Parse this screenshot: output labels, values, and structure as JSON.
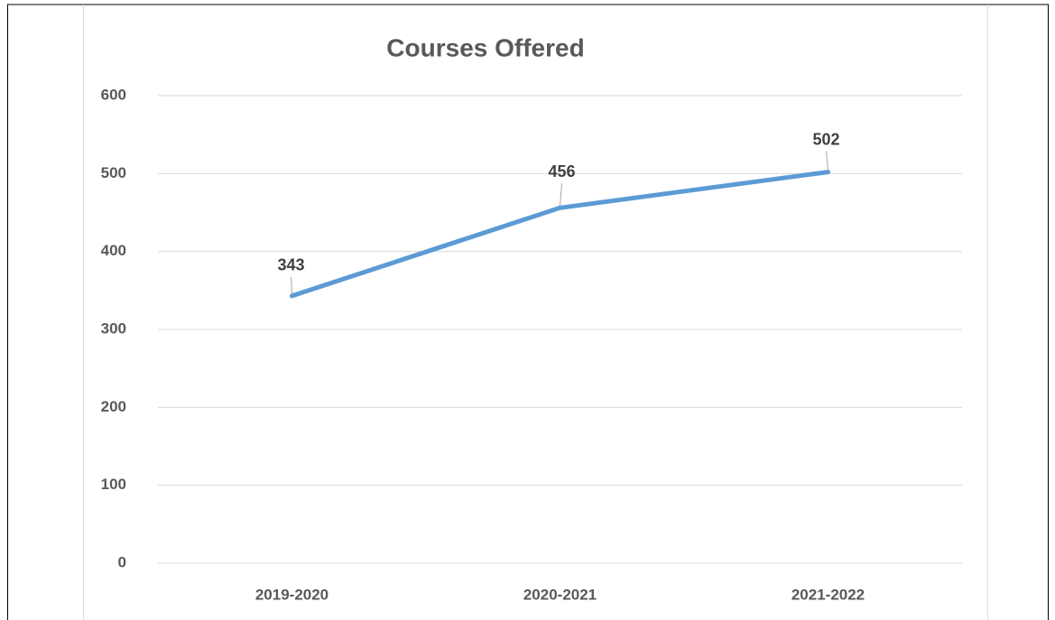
{
  "chart_data": {
    "type": "line",
    "title": "Courses Offered",
    "categories": [
      "2019-2020",
      "2020-2021",
      "2021-2022"
    ],
    "series": [
      {
        "name": "Courses Offered",
        "color": "#5b9bd5",
        "values": [
          343,
          456,
          502
        ]
      }
    ],
    "ylim": [
      0,
      600
    ],
    "yticks": [
      0,
      100,
      200,
      300,
      400,
      500,
      600
    ],
    "grid": true
  }
}
